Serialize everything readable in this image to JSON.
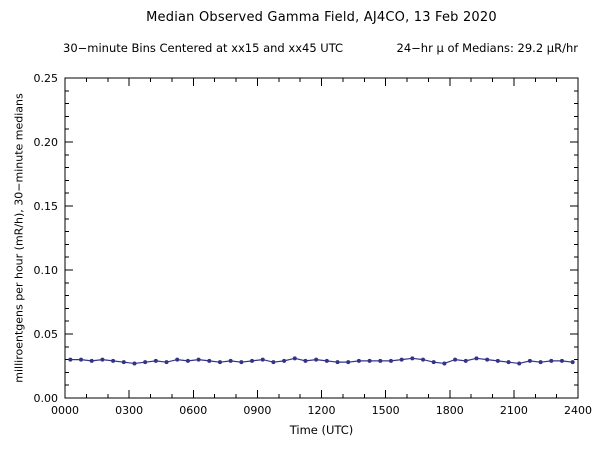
{
  "chart_data": {
    "type": "line",
    "title": "Median Observed Gamma Field, AJ4CO, 13 Feb 2020",
    "subtitle_left": "30−minute Bins Centered at xx15 and xx45 UTC",
    "subtitle_right": "24−hr μ of Medians: 29.2 μR/hr",
    "mean_of_medians_uR_per_hr": 29.2,
    "xlabel": "Time (UTC)",
    "ylabel": "milliroentgens per hour (mR/h), 30−minute medians",
    "xlim": [
      0,
      24
    ],
    "ylim": [
      0,
      0.25
    ],
    "grid": false,
    "legend": "none",
    "marker": "filled-circle",
    "line_color": "#333388",
    "frame_color": "#000000",
    "background_color": "#ffffff",
    "x_ticks": {
      "values": [
        0,
        3,
        6,
        9,
        12,
        15,
        18,
        21,
        24
      ],
      "labels": [
        "0000",
        "0300",
        "0600",
        "0900",
        "1200",
        "1500",
        "1800",
        "2100",
        "2400"
      ]
    },
    "y_ticks": {
      "values": [
        0,
        0.05,
        0.1,
        0.15,
        0.2,
        0.25
      ],
      "labels": [
        "0.00",
        "0.05",
        "0.10",
        "0.15",
        "0.20",
        "0.25"
      ]
    },
    "x": [
      0.25,
      0.75,
      1.25,
      1.75,
      2.25,
      2.75,
      3.25,
      3.75,
      4.25,
      4.75,
      5.25,
      5.75,
      6.25,
      6.75,
      7.25,
      7.75,
      8.25,
      8.75,
      9.25,
      9.75,
      10.25,
      10.75,
      11.25,
      11.75,
      12.25,
      12.75,
      13.25,
      13.75,
      14.25,
      14.75,
      15.25,
      15.75,
      16.25,
      16.75,
      17.25,
      17.75,
      18.25,
      18.75,
      19.25,
      19.75,
      20.25,
      20.75,
      21.25,
      21.75,
      22.25,
      22.75,
      23.25,
      23.75
    ],
    "values": [
      0.03,
      0.03,
      0.029,
      0.03,
      0.029,
      0.028,
      0.027,
      0.028,
      0.029,
      0.028,
      0.03,
      0.029,
      0.03,
      0.029,
      0.028,
      0.029,
      0.028,
      0.029,
      0.03,
      0.028,
      0.029,
      0.031,
      0.029,
      0.03,
      0.029,
      0.028,
      0.028,
      0.029,
      0.029,
      0.029,
      0.029,
      0.03,
      0.031,
      0.03,
      0.028,
      0.027,
      0.03,
      0.029,
      0.031,
      0.03,
      0.029,
      0.028,
      0.027,
      0.029,
      0.028,
      0.029,
      0.029,
      0.028
    ]
  }
}
